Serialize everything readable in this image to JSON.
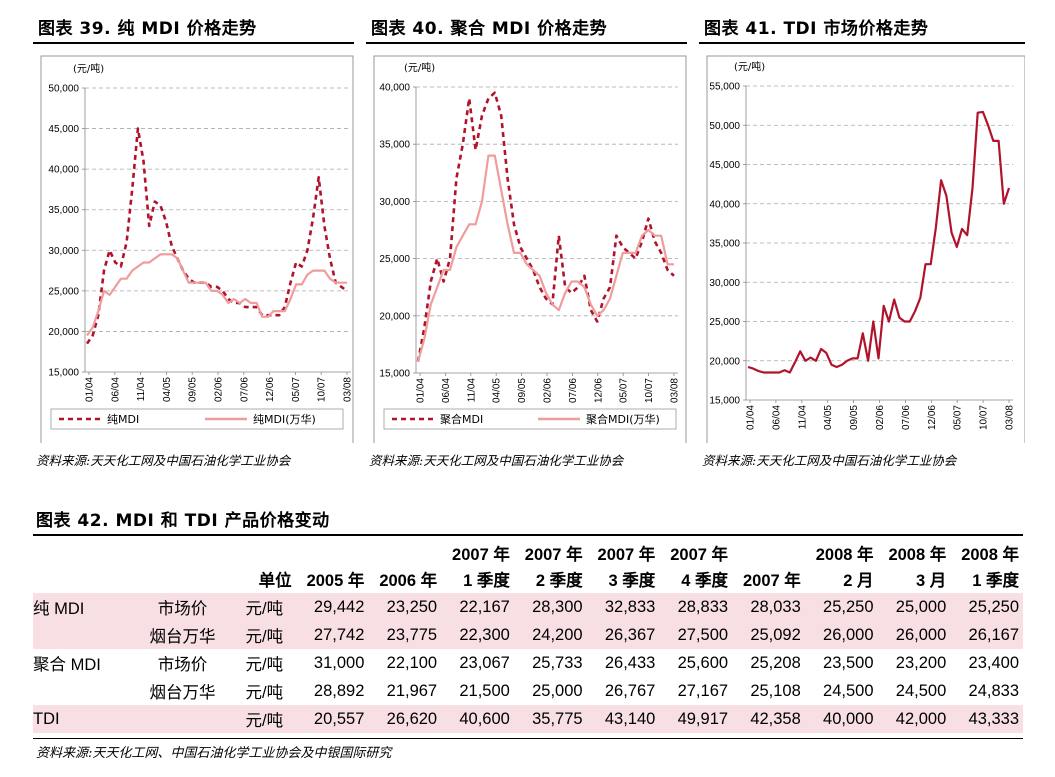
{
  "charts_header": {
    "c39": "图表 39. 纯 MDI 价格走势",
    "c40": "图表 40. 聚合 MDI 价格走势",
    "c41": "图表 41. TDI 市场价格走势"
  },
  "sources": {
    "c39": "资料来源:天天化工网及中国石油化学工业协会",
    "c40": "资料来源:天天化工网及中国石油化学工业协会",
    "c41": "资料来源:天天化工网及中国石油化学工业协会",
    "table": "资料来源:天天化工网、中国石油化学工业协会及中银国际研究"
  },
  "colors": {
    "dark": "#b0142c",
    "light": "#ef9c9c"
  },
  "chart_data": [
    {
      "type": "line",
      "unit": "(元/吨)",
      "ylim": [
        15000,
        50000
      ],
      "yticks": [
        15000,
        20000,
        25000,
        30000,
        35000,
        40000,
        45000,
        50000
      ],
      "ytick_labels": [
        "15,000",
        "20,000",
        "25,000",
        "30,000",
        "35,000",
        "40,000",
        "45,000",
        "50,000"
      ],
      "grid": true,
      "legend": "bottom",
      "x_tick_labels": [
        "01/04",
        "06/04",
        "11/04",
        "04/05",
        "09/05",
        "02/06",
        "07/06",
        "12/06",
        "05/07",
        "10/07",
        "03/08"
      ],
      "series": [
        {
          "name": "纯MDI",
          "style": "dashed",
          "values": [
            18500,
            19500,
            22000,
            27500,
            30000,
            28500,
            28000,
            31000,
            37500,
            45000,
            41000,
            33000,
            36000,
            35500,
            33500,
            30500,
            29000,
            27500,
            26500,
            26000,
            26000,
            26000,
            25500,
            25500,
            25000,
            24000,
            23500,
            23500,
            23000,
            23000,
            23000,
            22000,
            22000,
            22000,
            22000,
            23000,
            26000,
            28500,
            28000,
            30000,
            34000,
            39000,
            33000,
            29000,
            26000,
            25500,
            25000
          ]
        },
        {
          "name": "纯MDI(万华)",
          "style": "solid",
          "values": [
            19500,
            20500,
            22500,
            25000,
            24500,
            25500,
            26500,
            26500,
            27500,
            28000,
            28500,
            28500,
            29000,
            29500,
            29500,
            29500,
            29000,
            27500,
            26000,
            26000,
            26000,
            26000,
            25000,
            25000,
            24500,
            23500,
            24000,
            23500,
            24000,
            23500,
            23500,
            21800,
            21800,
            22500,
            22500,
            22500,
            24000,
            25800,
            25800,
            27000,
            27500,
            27500,
            27500,
            26500,
            26000,
            26000,
            26000
          ]
        }
      ]
    },
    {
      "type": "line",
      "unit": "(元/吨)",
      "ylim": [
        15000,
        40000
      ],
      "yticks": [
        15000,
        20000,
        25000,
        30000,
        35000,
        40000
      ],
      "ytick_labels": [
        "15,000",
        "20,000",
        "25,000",
        "30,000",
        "35,000",
        "40,000"
      ],
      "grid": true,
      "legend": "bottom",
      "x_tick_labels": [
        "01/04",
        "06/04",
        "11/04",
        "04/05",
        "09/05",
        "02/06",
        "07/06",
        "12/06",
        "05/07",
        "10/07",
        "03/08"
      ],
      "series": [
        {
          "name": "聚合MDI",
          "style": "dashed",
          "values": [
            16000,
            19000,
            23000,
            25000,
            23000,
            25000,
            32000,
            35000,
            39000,
            34500,
            37500,
            39000,
            39500,
            37500,
            32000,
            28000,
            26000,
            25000,
            24000,
            22500,
            21500,
            21000,
            27000,
            22500,
            22000,
            22500,
            23500,
            20500,
            19500,
            21500,
            22500,
            27000,
            26000,
            25500,
            25000,
            26500,
            28500,
            26500,
            25500,
            24000,
            23500
          ]
        },
        {
          "name": "聚合MDI(万华)",
          "style": "solid",
          "values": [
            16000,
            18000,
            21000,
            22500,
            24000,
            24000,
            26000,
            27000,
            28000,
            28000,
            30000,
            34000,
            34000,
            31000,
            28000,
            25500,
            25500,
            24500,
            24000,
            23500,
            22000,
            21000,
            20500,
            22000,
            23000,
            23000,
            22500,
            21000,
            20000,
            20500,
            21500,
            23500,
            25500,
            25500,
            25500,
            27000,
            27500,
            27000,
            27000,
            24500,
            24500
          ]
        }
      ]
    },
    {
      "type": "line",
      "unit": "(元/吨)",
      "ylim": [
        15000,
        55000
      ],
      "yticks": [
        15000,
        20000,
        25000,
        30000,
        35000,
        40000,
        45000,
        50000,
        55000
      ],
      "ytick_labels": [
        "15,000",
        "20,000",
        "25,000",
        "30,000",
        "35,000",
        "40,000",
        "45,000",
        "50,000",
        "55,000"
      ],
      "grid": true,
      "x_tick_labels": [
        "01/04",
        "06/04",
        "11/04",
        "04/05",
        "09/05",
        "02/06",
        "07/06",
        "12/06",
        "05/07",
        "10/07",
        "03/08"
      ],
      "series": [
        {
          "style": "solid",
          "values": [
            19200,
            19000,
            18700,
            18500,
            18500,
            18500,
            18500,
            18800,
            18500,
            19800,
            21200,
            20000,
            20400,
            20000,
            21500,
            21000,
            19500,
            19200,
            19500,
            20000,
            20300,
            20300,
            23500,
            20000,
            25000,
            20300,
            27000,
            25000,
            27800,
            25500,
            25000,
            25000,
            26300,
            28000,
            32300,
            32300,
            37000,
            43000,
            41000,
            36300,
            34500,
            36800,
            36000,
            42000,
            51600,
            51700,
            50000,
            48000,
            48000,
            40000,
            42000
          ]
        }
      ]
    }
  ],
  "table": {
    "title": "图表 42. MDI 和 TDI 产品价格变动",
    "header_top": [
      "",
      "",
      "",
      "",
      "",
      "2007 年",
      "2007 年",
      "2007 年",
      "2007 年",
      "",
      "2008 年",
      "2008 年",
      "2008 年"
    ],
    "header_bottom": [
      "",
      "",
      "单位",
      "2005 年",
      "2006 年",
      "1 季度",
      "2 季度",
      "3 季度",
      "4 季度",
      "2007 年",
      "2 月",
      "3 月",
      "1 季度"
    ],
    "rows": [
      {
        "cells": [
          "纯 MDI",
          "市场价",
          "元/吨",
          "29,442",
          "23,250",
          "22,167",
          "28,300",
          "32,833",
          "28,833",
          "28,033",
          "25,250",
          "25,000",
          "25,250"
        ]
      },
      {
        "cells": [
          "",
          "烟台万华",
          "元/吨",
          "27,742",
          "23,775",
          "22,300",
          "24,200",
          "26,367",
          "27,500",
          "25,092",
          "26,000",
          "26,000",
          "26,167"
        ]
      },
      {
        "cells": [
          "聚合 MDI",
          "市场价",
          "元/吨",
          "31,000",
          "22,100",
          "23,067",
          "25,733",
          "26,433",
          "25,600",
          "25,208",
          "23,500",
          "23,200",
          "23,400"
        ]
      },
      {
        "cells": [
          "",
          "烟台万华",
          "元/吨",
          "28,892",
          "21,967",
          "21,500",
          "25,000",
          "26,767",
          "27,167",
          "25,108",
          "24,500",
          "24,500",
          "24,833"
        ]
      },
      {
        "cells": [
          "TDI",
          "",
          "元/吨",
          "20,557",
          "26,620",
          "40,600",
          "35,775",
          "43,140",
          "49,917",
          "42,358",
          "40,000",
          "42,000",
          "43,333"
        ]
      }
    ]
  }
}
